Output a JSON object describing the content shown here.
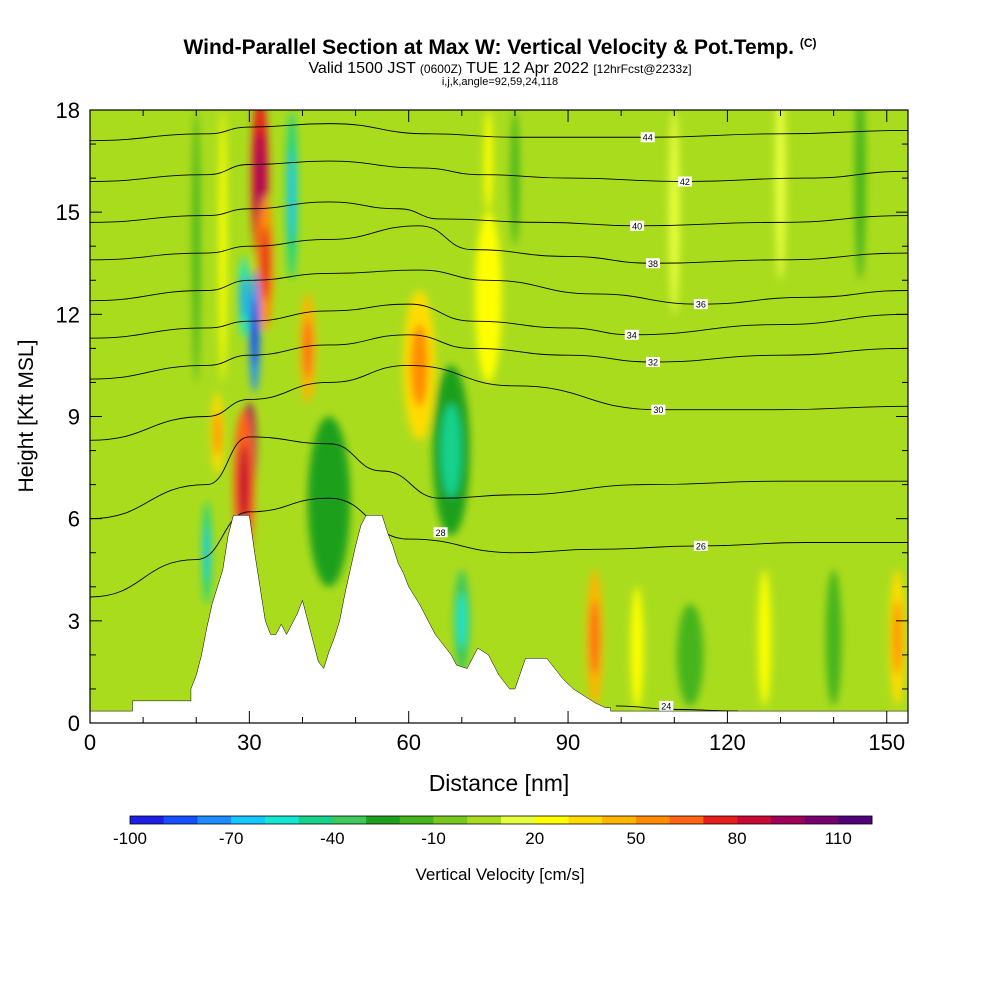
{
  "header": {
    "title": "Wind-Parallel Section at Max W: Vertical Velocity & Pot.Temp.",
    "copyright": "(C)",
    "valid_a": "Valid 1500 JST",
    "valid_zulu": "(0600Z)",
    "valid_b": "TUE 12 Apr 2022",
    "forecast": "[12hrFcst@2233z]",
    "indices": "i,j,k,angle=92,59,24,118"
  },
  "chart_data": {
    "type": "heatmap",
    "xlabel": "Distance [nm]",
    "ylabel": "Height [Kft MSL]",
    "xlim": [
      0,
      154
    ],
    "ylim": [
      0,
      18
    ],
    "xticks": [
      0,
      30,
      60,
      90,
      120,
      150
    ],
    "yticks": [
      0,
      3,
      6,
      9,
      12,
      15,
      18
    ],
    "colorbar": {
      "label": "Vertical Velocity [cm/s]",
      "tick_labels": [
        "-100",
        "-70",
        "-40",
        "-10",
        "20",
        "50",
        "80",
        "110"
      ],
      "tick_values": [
        -100,
        -70,
        -40,
        -10,
        20,
        50,
        80,
        110
      ],
      "range": [
        -100,
        120
      ],
      "step": 10,
      "colors": [
        "#1e1ee6",
        "#1450ff",
        "#1e8cff",
        "#14c8ff",
        "#14e6d2",
        "#14d28c",
        "#3cc85a",
        "#1ea01e",
        "#46b41e",
        "#78c81e",
        "#aadc1e",
        "#e6ff3c",
        "#ffff00",
        "#ffdc00",
        "#ffb400",
        "#ff8c00",
        "#ff6414",
        "#e61e1e",
        "#c80a32",
        "#a0005a",
        "#78006e",
        "#500078"
      ]
    },
    "terrain": [
      [
        0,
        0.35
      ],
      [
        8,
        0.35
      ],
      [
        8,
        0.65
      ],
      [
        19,
        0.65
      ],
      [
        19,
        1.0
      ],
      [
        20,
        1.4
      ],
      [
        21,
        2.0
      ],
      [
        22,
        2.8
      ],
      [
        23,
        3.5
      ],
      [
        24,
        4.0
      ],
      [
        25,
        4.5
      ],
      [
        26,
        5.5
      ],
      [
        27,
        6.1
      ],
      [
        30,
        6.1
      ],
      [
        31,
        5.0
      ],
      [
        32,
        4.0
      ],
      [
        33,
        3.0
      ],
      [
        34,
        2.6
      ],
      [
        35,
        2.6
      ],
      [
        36,
        2.9
      ],
      [
        37,
        2.6
      ],
      [
        38,
        2.9
      ],
      [
        39,
        3.2
      ],
      [
        40,
        3.6
      ],
      [
        41,
        3.0
      ],
      [
        42,
        2.4
      ],
      [
        43,
        1.8
      ],
      [
        44,
        1.6
      ],
      [
        45,
        2.1
      ],
      [
        46,
        2.5
      ],
      [
        47,
        3.0
      ],
      [
        48,
        3.8
      ],
      [
        49,
        4.5
      ],
      [
        50,
        5.2
      ],
      [
        51,
        5.8
      ],
      [
        52,
        6.1
      ],
      [
        55,
        6.1
      ],
      [
        56,
        5.6
      ],
      [
        57,
        5.2
      ],
      [
        58,
        4.7
      ],
      [
        59,
        4.4
      ],
      [
        60,
        4.0
      ],
      [
        62,
        3.5
      ],
      [
        63,
        3.2
      ],
      [
        65,
        2.6
      ],
      [
        67,
        2.2
      ],
      [
        68,
        2.0
      ],
      [
        69,
        1.7
      ],
      [
        71,
        1.6
      ],
      [
        73,
        2.2
      ],
      [
        75,
        2.0
      ],
      [
        77,
        1.4
      ],
      [
        79,
        1.0
      ],
      [
        80,
        1.0
      ],
      [
        82,
        1.9
      ],
      [
        86,
        1.9
      ],
      [
        89,
        1.3
      ],
      [
        91,
        1.0
      ],
      [
        93,
        0.8
      ],
      [
        95,
        0.6
      ],
      [
        97,
        0.45
      ],
      [
        98,
        0.45
      ],
      [
        98,
        0.35
      ],
      [
        154,
        0.35
      ]
    ],
    "theta_contours": [
      {
        "label": "24",
        "label_at": [
          108.5,
          0.5
        ],
        "points": [
          [
            99,
            0.5
          ],
          [
            110,
            0.4
          ],
          [
            122,
            0.35
          ]
        ]
      },
      {
        "label": "26",
        "label_at": [
          115,
          5.2
        ],
        "points": [
          [
            0,
            3.7
          ],
          [
            20,
            4.8
          ],
          [
            30,
            6.2
          ],
          [
            45,
            6.6
          ],
          [
            60,
            5.4
          ],
          [
            80,
            5.0
          ],
          [
            95,
            5.1
          ],
          [
            115,
            5.2
          ],
          [
            135,
            5.3
          ],
          [
            154,
            5.3
          ]
        ]
      },
      {
        "label": "28",
        "label_at": [
          66,
          5.6
        ],
        "points": [
          [
            0,
            6.0
          ],
          [
            22,
            7.0
          ],
          [
            30,
            8.4
          ],
          [
            45,
            8.2
          ],
          [
            55,
            7.4
          ],
          [
            66,
            6.6
          ],
          [
            80,
            6.7
          ],
          [
            105,
            7.0
          ],
          [
            130,
            7.1
          ],
          [
            154,
            7.1
          ]
        ]
      },
      {
        "label": "30",
        "label_at": [
          107,
          9.2
        ],
        "points": [
          [
            0,
            8.3
          ],
          [
            22,
            9.0
          ],
          [
            30,
            9.5
          ],
          [
            45,
            10.0
          ],
          [
            60,
            10.5
          ],
          [
            80,
            9.9
          ],
          [
            107,
            9.2
          ],
          [
            130,
            9.2
          ],
          [
            154,
            9.3
          ]
        ]
      },
      {
        "label": "32",
        "label_at": [
          106,
          10.6
        ],
        "points": [
          [
            0,
            10.1
          ],
          [
            22,
            10.5
          ],
          [
            30,
            10.8
          ],
          [
            45,
            11.1
          ],
          [
            60,
            11.4
          ],
          [
            72,
            11.0
          ],
          [
            90,
            10.8
          ],
          [
            106,
            10.6
          ],
          [
            130,
            10.8
          ],
          [
            154,
            11.0
          ]
        ]
      },
      {
        "label": "34",
        "label_at": [
          102,
          11.4
        ],
        "points": [
          [
            0,
            11.3
          ],
          [
            22,
            11.6
          ],
          [
            30,
            11.8
          ],
          [
            45,
            12.1
          ],
          [
            60,
            12.3
          ],
          [
            72,
            11.8
          ],
          [
            90,
            11.6
          ],
          [
            102,
            11.4
          ],
          [
            130,
            11.7
          ],
          [
            154,
            12.0
          ]
        ]
      },
      {
        "label": "36",
        "label_at": [
          115,
          12.3
        ],
        "points": [
          [
            0,
            12.4
          ],
          [
            22,
            12.7
          ],
          [
            30,
            13.0
          ],
          [
            45,
            13.2
          ],
          [
            62,
            13.3
          ],
          [
            75,
            13.0
          ],
          [
            95,
            12.6
          ],
          [
            115,
            12.3
          ],
          [
            135,
            12.5
          ],
          [
            154,
            12.7
          ]
        ]
      },
      {
        "label": "38",
        "label_at": [
          106,
          13.5
        ],
        "points": [
          [
            0,
            13.6
          ],
          [
            22,
            13.8
          ],
          [
            30,
            14.0
          ],
          [
            45,
            14.2
          ],
          [
            62,
            14.6
          ],
          [
            72,
            13.9
          ],
          [
            90,
            13.7
          ],
          [
            106,
            13.5
          ],
          [
            130,
            13.6
          ],
          [
            154,
            13.8
          ]
        ]
      },
      {
        "label": "40",
        "label_at": [
          103,
          14.6
        ],
        "points": [
          [
            0,
            14.7
          ],
          [
            22,
            14.9
          ],
          [
            30,
            15.1
          ],
          [
            45,
            15.3
          ],
          [
            58,
            15.1
          ],
          [
            66,
            14.8
          ],
          [
            85,
            14.7
          ],
          [
            103,
            14.6
          ],
          [
            130,
            14.7
          ],
          [
            154,
            14.9
          ]
        ]
      },
      {
        "label": "42",
        "label_at": [
          112,
          15.9
        ],
        "points": [
          [
            0,
            15.9
          ],
          [
            22,
            16.1
          ],
          [
            30,
            16.4
          ],
          [
            45,
            16.5
          ],
          [
            62,
            16.3
          ],
          [
            74,
            16.1
          ],
          [
            90,
            16.0
          ],
          [
            112,
            15.9
          ],
          [
            135,
            16.0
          ],
          [
            154,
            16.2
          ]
        ]
      },
      {
        "label": "44",
        "label_at": [
          105,
          17.2
        ],
        "points": [
          [
            0,
            17.1
          ],
          [
            22,
            17.3
          ],
          [
            30,
            17.5
          ],
          [
            45,
            17.6
          ],
          [
            64,
            17.3
          ],
          [
            80,
            17.2
          ],
          [
            105,
            17.2
          ],
          [
            130,
            17.3
          ],
          [
            154,
            17.4
          ]
        ]
      }
    ],
    "velocity_features": [
      {
        "x": 30,
        "y": 8.0,
        "rx": 1.3,
        "ry": 1.4,
        "value": 95
      },
      {
        "x": 29,
        "y": 7.0,
        "rx": 2.0,
        "ry": 2.2,
        "value": 60
      },
      {
        "x": 32,
        "y": 16.0,
        "rx": 1.6,
        "ry": 2.5,
        "value": 70
      },
      {
        "x": 33,
        "y": 13.5,
        "rx": 1.5,
        "ry": 2.0,
        "value": 50
      },
      {
        "x": 31,
        "y": 11.5,
        "rx": 1.0,
        "ry": 1.8,
        "value": -80
      },
      {
        "x": 29,
        "y": 12.5,
        "rx": 0.9,
        "ry": 1.2,
        "value": -60
      },
      {
        "x": 38,
        "y": 15.5,
        "rx": 1.0,
        "ry": 2.5,
        "value": -50
      },
      {
        "x": 41,
        "y": 11.0,
        "rx": 1.4,
        "ry": 1.6,
        "value": 40
      },
      {
        "x": 22,
        "y": 5.0,
        "rx": 0.8,
        "ry": 1.5,
        "value": -50
      },
      {
        "x": 24,
        "y": 8.5,
        "rx": 1.2,
        "ry": 1.2,
        "value": 30
      },
      {
        "x": 45,
        "y": 6.5,
        "rx": 4.0,
        "ry": 2.5,
        "value": -25
      },
      {
        "x": 62,
        "y": 10.5,
        "rx": 3.0,
        "ry": 2.2,
        "value": 35
      },
      {
        "x": 68,
        "y": 8.0,
        "rx": 3.5,
        "ry": 2.5,
        "value": -30
      },
      {
        "x": 75,
        "y": 12.5,
        "rx": 2.5,
        "ry": 2.5,
        "value": 25
      },
      {
        "x": 70,
        "y": 3.0,
        "rx": 1.5,
        "ry": 1.5,
        "value": -35
      },
      {
        "x": 95,
        "y": 2.5,
        "rx": 1.5,
        "ry": 2.0,
        "value": 40
      },
      {
        "x": 103,
        "y": 2.2,
        "rx": 1.2,
        "ry": 1.8,
        "value": 25
      },
      {
        "x": 113,
        "y": 2.0,
        "rx": 2.5,
        "ry": 1.5,
        "value": -20
      },
      {
        "x": 127,
        "y": 2.5,
        "rx": 1.2,
        "ry": 2.0,
        "value": 25
      },
      {
        "x": 140,
        "y": 2.5,
        "rx": 1.5,
        "ry": 2.0,
        "value": -20
      },
      {
        "x": 152,
        "y": 2.5,
        "rx": 1.5,
        "ry": 2.0,
        "value": 30
      },
      {
        "x": 20,
        "y": 14.0,
        "rx": 0.7,
        "ry": 4.0,
        "value": -20
      },
      {
        "x": 25,
        "y": 14.0,
        "rx": 0.7,
        "ry": 4.0,
        "value": 20
      },
      {
        "x": 75,
        "y": 16.5,
        "rx": 0.8,
        "ry": 1.5,
        "value": 20
      },
      {
        "x": 80,
        "y": 16.0,
        "rx": 0.8,
        "ry": 2.0,
        "value": -20
      },
      {
        "x": 110,
        "y": 15.0,
        "rx": 1.0,
        "ry": 3.0,
        "value": 15
      },
      {
        "x": 130,
        "y": 16.0,
        "rx": 1.0,
        "ry": 3.0,
        "value": 15
      },
      {
        "x": 145,
        "y": 16.0,
        "rx": 1.0,
        "ry": 3.0,
        "value": -15
      }
    ],
    "background_value": 0
  }
}
